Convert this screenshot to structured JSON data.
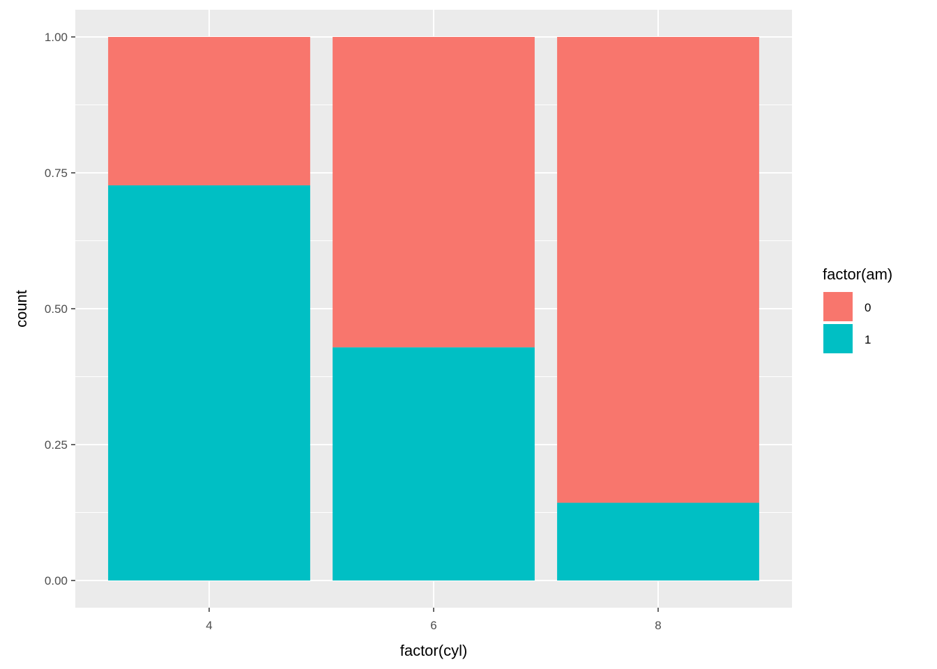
{
  "chart_data": {
    "type": "bar",
    "stacked": true,
    "position": "fill",
    "title": "",
    "xlabel": "factor(cyl)",
    "ylabel": "count",
    "categories": [
      "4",
      "6",
      "8"
    ],
    "series": [
      {
        "name": "0",
        "color": "#F8766D",
        "values": [
          0.273,
          0.571,
          0.857
        ]
      },
      {
        "name": "1",
        "color": "#00BFC4",
        "values": [
          0.727,
          0.429,
          0.143
        ]
      }
    ],
    "ylim": [
      0,
      1
    ],
    "yticks": [
      "0.00",
      "0.25",
      "0.50",
      "0.75",
      "1.00"
    ],
    "legend": {
      "title": "factor(am)",
      "position": "right"
    },
    "panel_background": "#EBEBEB",
    "grid": true,
    "grid_color": "#FFFFFF"
  }
}
